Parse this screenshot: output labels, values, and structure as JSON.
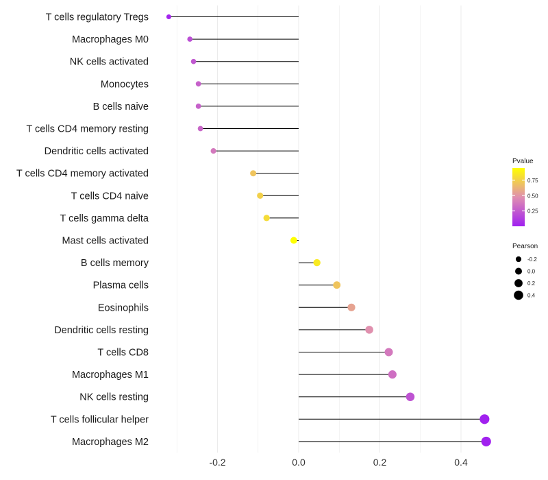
{
  "chart_data": {
    "type": "lollipop",
    "title": "",
    "xlabel": "",
    "ylabel": "",
    "xlim": [
      -0.32,
      0.5
    ],
    "xticks": [
      -0.2,
      0.0,
      0.2,
      0.4
    ],
    "xtick_labels": [
      "-0.2",
      "0.0",
      "0.2",
      "0.4"
    ],
    "grid": true,
    "categories": [
      "T cells regulatory  Tregs",
      "Macrophages M0",
      "NK cells activated",
      "Monocytes",
      "B cells naive",
      "T cells CD4 memory resting",
      "Dendritic cells activated",
      "T cells CD4 memory activated",
      "T cells CD4 naive",
      "T cells gamma delta",
      "Mast cells activated",
      "B cells memory",
      "Plasma cells",
      "Eosinophils",
      "Dendritic cells resting",
      "T cells CD8",
      "Macrophages M1",
      "NK cells resting",
      "T cells follicular helper",
      "Macrophages M2"
    ],
    "pearson": [
      -0.32,
      -0.268,
      -0.259,
      -0.247,
      -0.247,
      -0.242,
      -0.21,
      -0.112,
      -0.095,
      -0.079,
      -0.012,
      0.045,
      0.094,
      0.13,
      0.174,
      0.222,
      0.231,
      0.275,
      0.458,
      0.462
    ],
    "pvalue": [
      0.02,
      0.2,
      0.24,
      0.28,
      0.28,
      0.3,
      0.38,
      0.7,
      0.75,
      0.8,
      0.96,
      0.86,
      0.7,
      0.56,
      0.48,
      0.38,
      0.34,
      0.22,
      0.004,
      0.004
    ],
    "legends": {
      "color": {
        "title": "Pvalue",
        "ticks": [
          0.25,
          0.5,
          0.75
        ],
        "tick_labels": [
          "0.25",
          "0.50",
          "0.75"
        ],
        "range": [
          0.0,
          0.95
        ],
        "low_color": "#a020f0",
        "mid_color": "#e08fb0",
        "high_color": "#ffff00",
        "placement": "right"
      },
      "size": {
        "title": "Pearson",
        "values": [
          -0.2,
          0.0,
          0.2,
          0.4
        ],
        "labels": [
          "-0.2",
          "0.0",
          "0.2",
          "0.4"
        ],
        "placement": "right"
      }
    },
    "colors": {
      "stem": "#000000",
      "grid": "#ebebeb"
    }
  }
}
